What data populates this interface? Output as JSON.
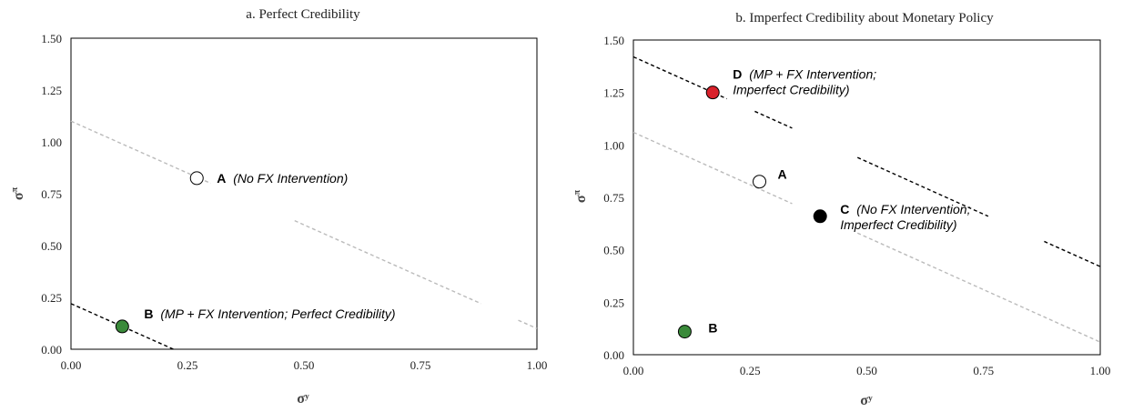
{
  "chart_data": [
    {
      "type": "scatter",
      "title": "a. Perfect Credibility",
      "xlabel": "σʸ",
      "ylabel": "σ^π",
      "xlim": [
        0,
        1
      ],
      "ylim": [
        0,
        1.5
      ],
      "x_ticks": [
        "0.00",
        "0.25",
        "0.50",
        "0.75",
        "1.00"
      ],
      "y_ticks": [
        "0.00",
        "0.25",
        "0.50",
        "0.75",
        "1.00",
        "1.25",
        "1.50"
      ],
      "grid": false,
      "points": [
        {
          "letter": "A",
          "text": "(No FX Intervention)",
          "x": 0.27,
          "y": 0.825,
          "fill": "#ffffff"
        },
        {
          "letter": "B",
          "text": "(MP + FX Intervention; Perfect Credibility)",
          "x": 0.11,
          "y": 0.11,
          "fill": "#3a8a3a"
        }
      ],
      "lines": [
        {
          "color": "#bbbbbb",
          "points": [
            [
              0,
              1.1
            ],
            [
              1.0,
              0.1
            ]
          ]
        },
        {
          "color": "#000000",
          "points": [
            [
              0,
              0.22
            ],
            [
              0.22,
              0.0
            ]
          ]
        }
      ]
    },
    {
      "type": "scatter",
      "title": "b. Imperfect Credibility about Monetary Policy",
      "xlabel": "σʸ",
      "ylabel": "σ^π",
      "xlim": [
        0,
        1
      ],
      "ylim": [
        0,
        1.5
      ],
      "x_ticks": [
        "0.00",
        "0.25",
        "0.50",
        "0.75",
        "1.00"
      ],
      "y_ticks": [
        "0.00",
        "0.25",
        "0.50",
        "0.75",
        "1.00",
        "1.25",
        "1.50"
      ],
      "grid": false,
      "points": [
        {
          "letter": "A",
          "text": "",
          "x": 0.27,
          "y": 0.825,
          "fill": "#ffffff"
        },
        {
          "letter": "B",
          "text": "",
          "x": 0.11,
          "y": 0.11,
          "fill": "#3a8a3a"
        },
        {
          "letter": "C",
          "text": "(No FX Intervention; Imperfect Credibility)",
          "x": 0.4,
          "y": 0.66,
          "fill": "#000000"
        },
        {
          "letter": "D",
          "text": "(MP + FX Intervention; Imperfect Credibility)",
          "x": 0.17,
          "y": 1.25,
          "fill": "#d9212b"
        }
      ],
      "lines": [
        {
          "color": "#bbbbbb",
          "points": [
            [
              0,
              1.06
            ],
            [
              1.0,
              0.06
            ]
          ]
        },
        {
          "color": "#000000",
          "points": [
            [
              0,
              1.42
            ],
            [
              1.0,
              0.42
            ]
          ]
        }
      ]
    }
  ]
}
